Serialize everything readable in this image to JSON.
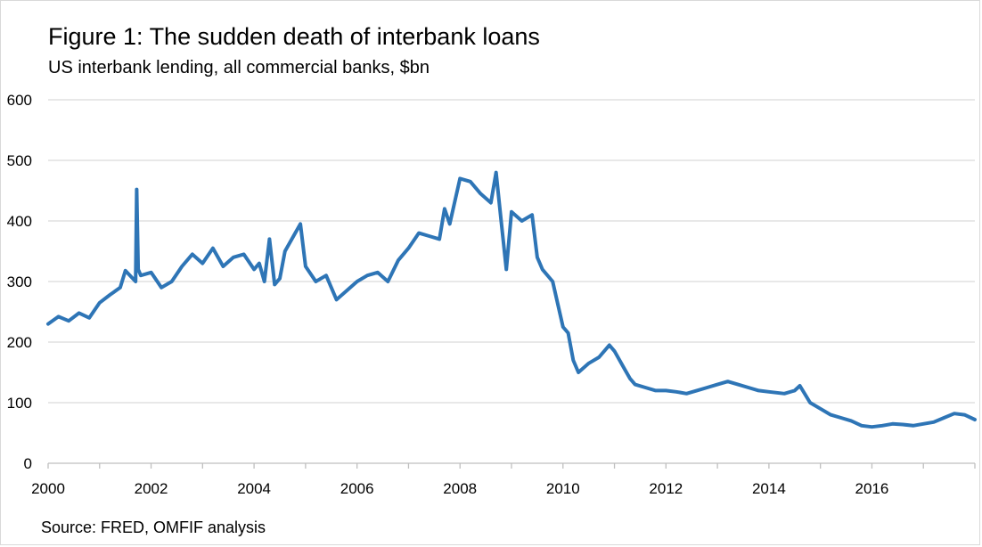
{
  "header": {
    "title": "Figure 1: The sudden death of interbank loans",
    "subtitle": "US interbank lending, all commercial banks, $bn"
  },
  "footer": {
    "source": "Source: FRED, OMFIF analysis"
  },
  "colors": {
    "series": "#2e75b6",
    "grid": "#d9d9d9",
    "axis": "#bfbfbf"
  },
  "chart_data": {
    "type": "line",
    "title": "Figure 1: The sudden death of interbank loans",
    "subtitle": "US interbank lending, all commercial banks, $bn",
    "xlabel": "",
    "ylabel": "",
    "xlim": [
      2000,
      2018
    ],
    "ylim": [
      0,
      600
    ],
    "x_ticks": [
      "2000",
      "2002",
      "2004",
      "2006",
      "2008",
      "2010",
      "2012",
      "2014",
      "2016"
    ],
    "y_ticks": [
      "0",
      "100",
      "200",
      "300",
      "400",
      "500",
      "600"
    ],
    "grid": true,
    "legend": "none",
    "series": [
      {
        "x": [
          2000.0,
          2000.2,
          2000.4,
          2000.6,
          2000.8,
          2001.0,
          2001.2,
          2001.4,
          2001.5,
          2001.7,
          2001.72,
          2001.75,
          2001.8,
          2002.0,
          2002.2,
          2002.4,
          2002.6,
          2002.8,
          2003.0,
          2003.2,
          2003.4,
          2003.6,
          2003.8,
          2004.0,
          2004.1,
          2004.2,
          2004.3,
          2004.4,
          2004.5,
          2004.6,
          2004.8,
          2004.9,
          2005.0,
          2005.2,
          2005.4,
          2005.5,
          2005.6,
          2005.8,
          2006.0,
          2006.2,
          2006.4,
          2006.6,
          2006.8,
          2007.0,
          2007.2,
          2007.4,
          2007.6,
          2007.7,
          2007.8,
          2008.0,
          2008.2,
          2008.4,
          2008.6,
          2008.7,
          2008.8,
          2008.9,
          2009.0,
          2009.2,
          2009.4,
          2009.5,
          2009.6,
          2009.8,
          2010.0,
          2010.1,
          2010.2,
          2010.3,
          2010.5,
          2010.7,
          2010.9,
          2011.0,
          2011.2,
          2011.3,
          2011.4,
          2011.6,
          2011.8,
          2012.0,
          2012.2,
          2012.4,
          2012.6,
          2012.8,
          2013.0,
          2013.2,
          2013.4,
          2013.6,
          2013.8,
          2014.0,
          2014.3,
          2014.5,
          2014.6,
          2014.8,
          2015.0,
          2015.2,
          2015.4,
          2015.6,
          2015.8,
          2016.0,
          2016.2,
          2016.4,
          2016.6,
          2016.8,
          2017.0,
          2017.2,
          2017.4,
          2017.6,
          2017.8,
          2018.0
        ],
        "y": [
          230,
          242,
          235,
          248,
          240,
          265,
          278,
          290,
          318,
          300,
          452,
          320,
          310,
          315,
          290,
          300,
          325,
          345,
          330,
          355,
          325,
          340,
          345,
          320,
          330,
          300,
          370,
          295,
          305,
          350,
          380,
          395,
          325,
          300,
          310,
          290,
          270,
          285,
          300,
          310,
          315,
          300,
          335,
          355,
          380,
          375,
          370,
          420,
          395,
          470,
          465,
          445,
          430,
          480,
          400,
          320,
          415,
          400,
          410,
          340,
          320,
          300,
          225,
          215,
          170,
          150,
          165,
          175,
          195,
          185,
          155,
          140,
          130,
          125,
          120,
          120,
          118,
          115,
          120,
          125,
          130,
          135,
          130,
          125,
          120,
          118,
          115,
          120,
          128,
          100,
          90,
          80,
          75,
          70,
          62,
          60,
          62,
          65,
          64,
          62,
          65,
          68,
          75,
          82,
          80,
          72
        ]
      }
    ]
  }
}
